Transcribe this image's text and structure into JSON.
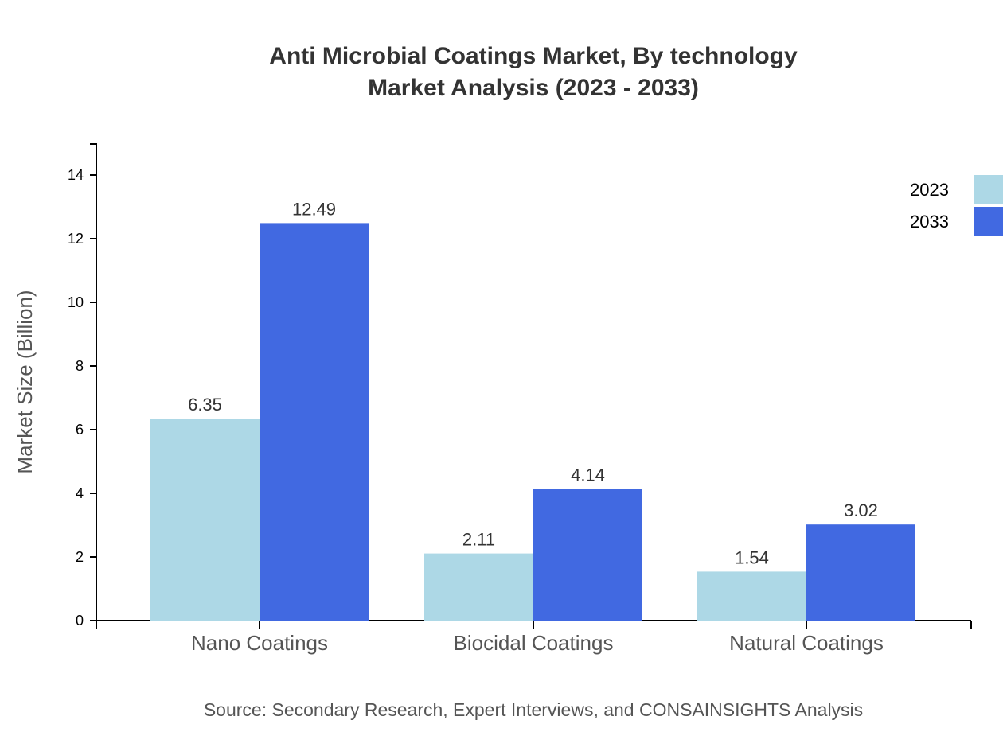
{
  "chart_data": {
    "type": "bar",
    "title": "Anti Microbial Coatings Market, By technology",
    "subtitle": "Market Analysis (2023 - 2033)",
    "xlabel": "",
    "ylabel": "Market Size (Billion)",
    "ylim": [
      0,
      15
    ],
    "yticks": [
      0,
      2,
      4,
      6,
      8,
      10,
      12,
      14
    ],
    "categories": [
      "Nano Coatings",
      "Biocidal Coatings",
      "Natural Coatings"
    ],
    "series": [
      {
        "name": "2023",
        "color": "#add8e6",
        "values": [
          6.35,
          2.11,
          1.54
        ],
        "labels": [
          "6.35",
          "2.11",
          "1.54"
        ]
      },
      {
        "name": "2033",
        "color": "#4169e1",
        "values": [
          12.49,
          4.14,
          3.02
        ],
        "labels": [
          "12.49",
          "4.14",
          "3.02"
        ]
      }
    ],
    "grid": false,
    "legend_placement": "top-right",
    "source": "Source: Secondary Research, Expert Interviews, and CONSAINSIGHTS Analysis"
  }
}
